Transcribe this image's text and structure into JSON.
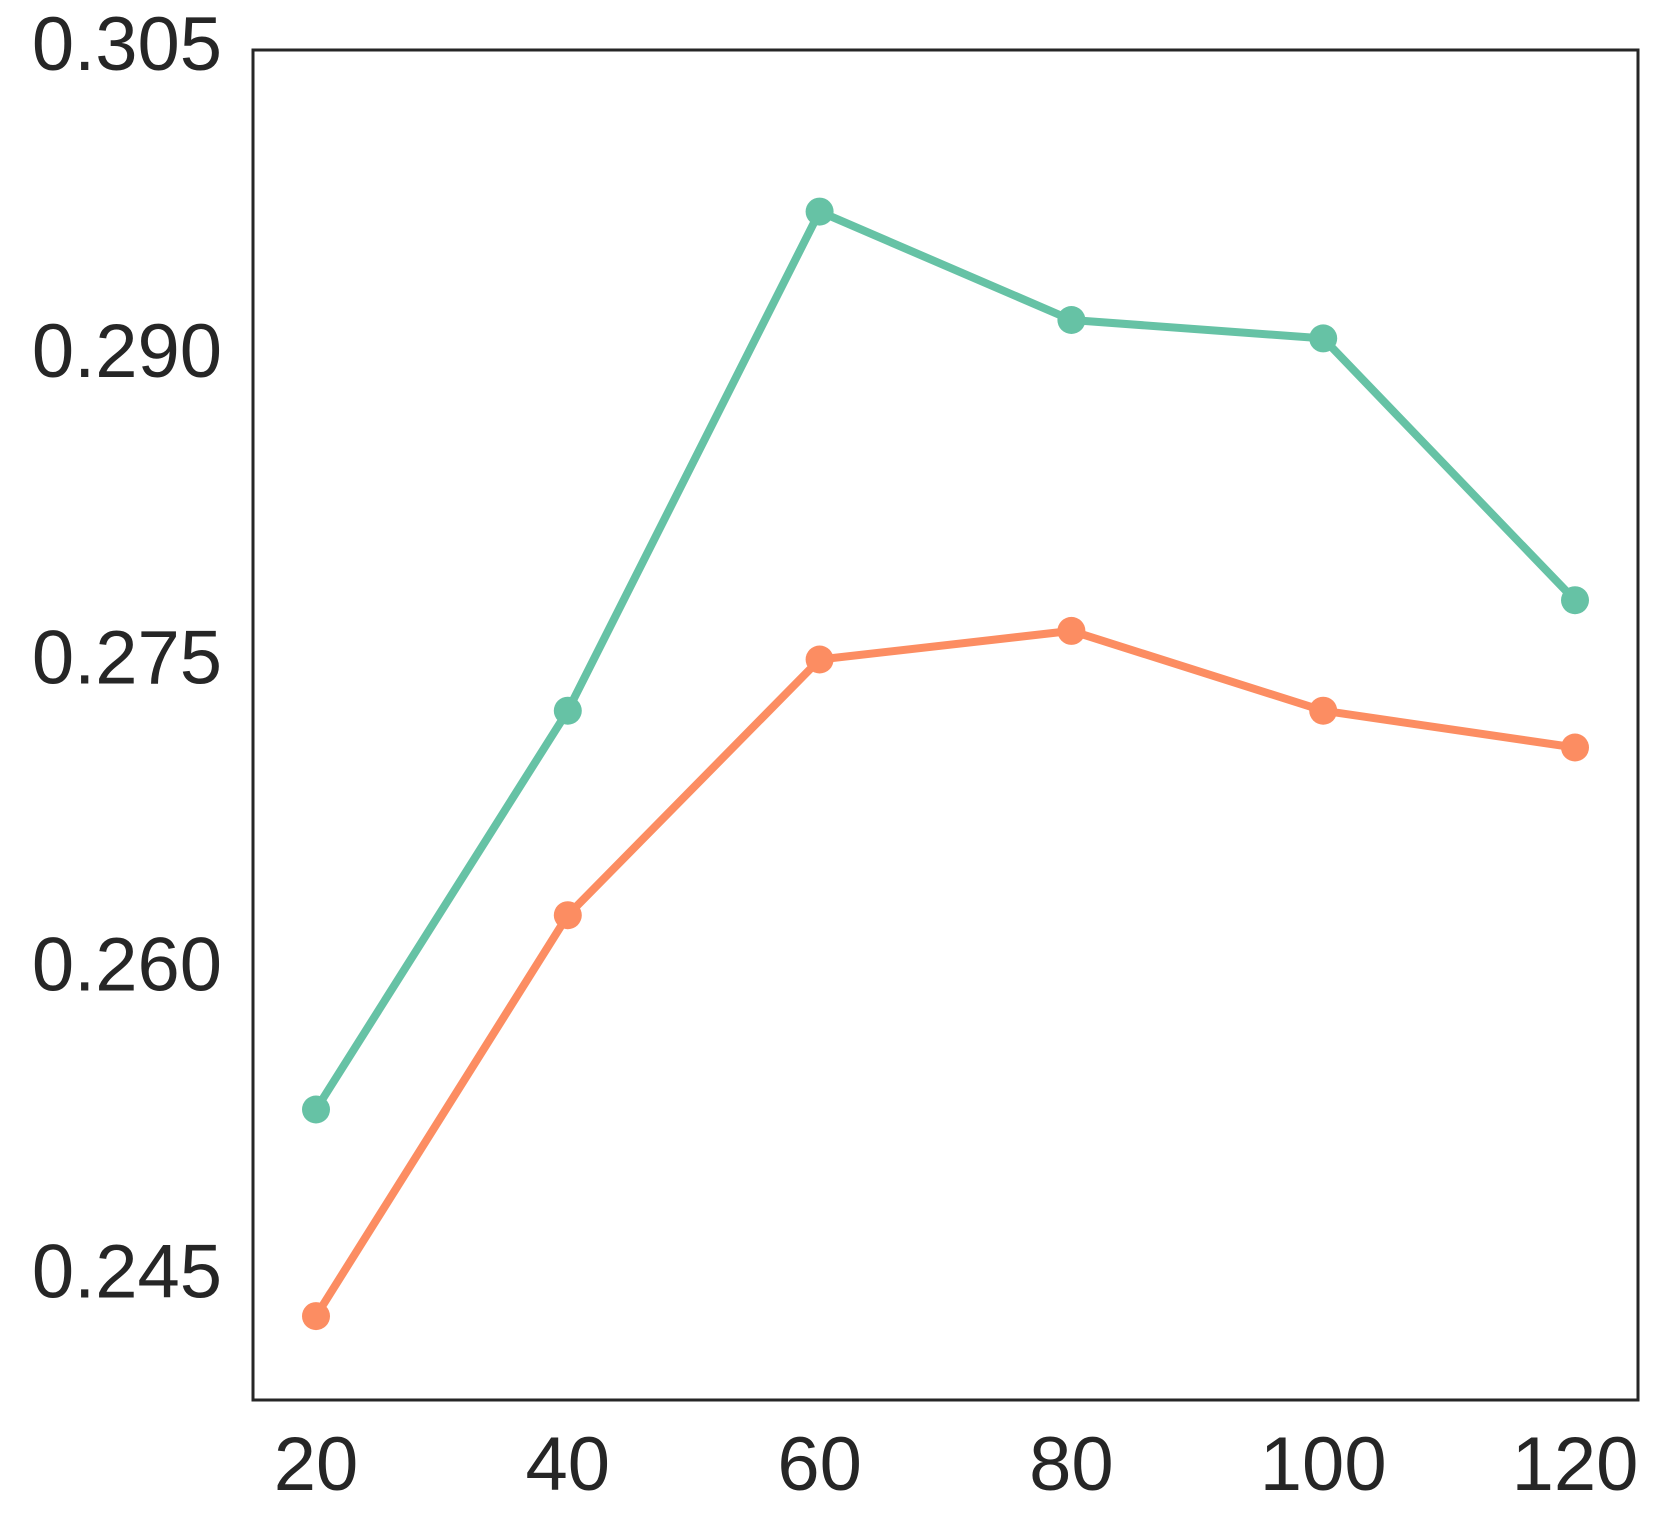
{
  "chart_data": {
    "type": "line",
    "title": "",
    "xlabel": "",
    "ylabel": "",
    "x": [
      20,
      40,
      60,
      80,
      100,
      120
    ],
    "xlim": [
      15,
      125
    ],
    "ylim": [
      0.239,
      0.305
    ],
    "x_ticks": [
      20,
      40,
      60,
      80,
      100,
      120
    ],
    "x_tick_labels": [
      "20",
      "40",
      "60",
      "80",
      "100",
      "120"
    ],
    "y_ticks": [
      0.245,
      0.26,
      0.275,
      0.29,
      0.305
    ],
    "y_tick_labels": [
      "0.245",
      "0.260",
      "0.275",
      "0.290",
      "0.305"
    ],
    "grid": false,
    "legend": "none",
    "series": [
      {
        "color": "#66c2a5",
        "values": [
          0.2532,
          0.2727,
          0.2971,
          0.2918,
          0.2909,
          0.2781
        ]
      },
      {
        "color": "#fc8d62",
        "values": [
          0.2431,
          0.2627,
          0.2752,
          0.2766,
          0.2727,
          0.2709
        ]
      }
    ]
  }
}
